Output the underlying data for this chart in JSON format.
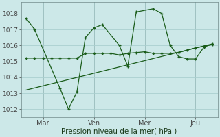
{
  "background_color": "#cce8e8",
  "grid_color": "#aacfcf",
  "line_color": "#1a5c1a",
  "title": "Pression niveau de la mer( hPa )",
  "ylabel_values": [
    1012,
    1013,
    1014,
    1015,
    1016,
    1017,
    1018
  ],
  "xtick_labels": [
    "Mar",
    "Ven",
    "Mer",
    "Jeu"
  ],
  "xtick_positions": [
    1,
    4,
    7,
    10
  ],
  "vline_positions": [
    1,
    4,
    7,
    10
  ],
  "line1_x": [
    0.0,
    0.5,
    2.0,
    2.5,
    3.0,
    3.5,
    4.0,
    4.5,
    5.5,
    6.0,
    6.5,
    7.5,
    8.0,
    8.5,
    9.0,
    9.5,
    10.0,
    10.5,
    11.0
  ],
  "line1_y": [
    1017.7,
    1017.0,
    1013.3,
    1012.0,
    1013.1,
    1016.5,
    1017.1,
    1017.3,
    1016.0,
    1014.7,
    1018.1,
    1018.3,
    1018.0,
    1016.0,
    1015.3,
    1015.15,
    1015.15,
    1015.9,
    1016.1
  ],
  "line2_x": [
    0.0,
    0.5,
    1.0,
    1.5,
    2.0,
    2.5,
    3.0,
    3.5,
    4.0,
    4.5,
    5.0,
    5.5,
    6.0,
    6.5,
    7.0,
    7.5,
    8.0,
    8.5,
    9.0,
    9.5,
    10.0,
    10.5,
    11.0
  ],
  "line2_y": [
    1015.2,
    1015.2,
    1015.2,
    1015.2,
    1015.2,
    1015.2,
    1015.2,
    1015.5,
    1015.5,
    1015.5,
    1015.5,
    1015.4,
    1015.5,
    1015.55,
    1015.6,
    1015.5,
    1015.5,
    1015.5,
    1015.55,
    1015.7,
    1015.85,
    1015.95,
    1016.05
  ],
  "line3_x": [
    0.0,
    11.0
  ],
  "line3_y": [
    1013.2,
    1016.1
  ],
  "xlim": [
    -0.3,
    11.3
  ],
  "ylim": [
    1011.5,
    1018.7
  ]
}
